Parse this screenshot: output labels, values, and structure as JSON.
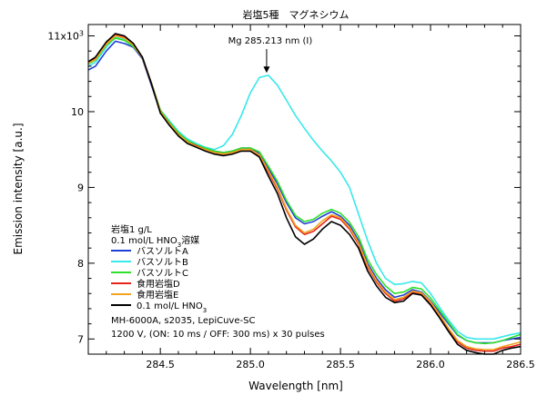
{
  "chart_data": {
    "type": "line",
    "title": "岩塩5種　マグネシウム",
    "xlabel": "Wavelength [nm]",
    "ylabel": "Emission intensity [a.u.]",
    "xlim": [
      284.1,
      286.5
    ],
    "ylim": [
      6.8,
      11.15
    ],
    "x_ticks": [
      284.5,
      285.0,
      285.5,
      286.0,
      286.5
    ],
    "x_tick_labels": [
      "284.5",
      "285.0",
      "285.5",
      "286.0",
      "286.5"
    ],
    "y_ticks": [
      7,
      8,
      9,
      10,
      11
    ],
    "y_tick_labels": [
      "7",
      "8",
      "9",
      "10"
    ],
    "y_top_label": {
      "base": "11x10",
      "exp": "3"
    },
    "annotation": {
      "text": "Mg 285.213 nm (I)",
      "x": 285.09,
      "y": 10.5
    },
    "legend": {
      "placement": "left",
      "title_line1": "岩塩1 g/L",
      "title_line2": {
        "before": "0.1 mol/L HNO",
        "sub": "3",
        "after": "溶媒"
      }
    },
    "notes": [
      "MH-6000A, s2035, LepiCuve-SC",
      "1200 V, (ON: 10 ms / OFF: 300 ms) x 30 pulses"
    ],
    "x": [
      284.1,
      284.14,
      284.2,
      284.25,
      284.3,
      284.35,
      284.4,
      284.45,
      284.5,
      284.55,
      284.6,
      284.65,
      284.7,
      284.75,
      284.8,
      284.85,
      284.9,
      284.95,
      285.0,
      285.05,
      285.1,
      285.15,
      285.2,
      285.25,
      285.3,
      285.35,
      285.4,
      285.45,
      285.5,
      285.55,
      285.6,
      285.65,
      285.7,
      285.75,
      285.8,
      285.85,
      285.9,
      285.95,
      286.0,
      286.05,
      286.1,
      286.15,
      286.2,
      286.25,
      286.3,
      286.35,
      286.4,
      286.45,
      286.5
    ],
    "series": [
      {
        "name": "バスソルトA",
        "color": "#1f3fd6",
        "values": [
          10.55,
          10.6,
          10.8,
          10.93,
          10.9,
          10.85,
          10.7,
          10.35,
          10.0,
          9.85,
          9.7,
          9.6,
          9.55,
          9.52,
          9.48,
          9.46,
          9.48,
          9.52,
          9.52,
          9.45,
          9.25,
          9.05,
          8.8,
          8.6,
          8.52,
          8.55,
          8.62,
          8.68,
          8.62,
          8.5,
          8.3,
          8.0,
          7.8,
          7.65,
          7.55,
          7.58,
          7.65,
          7.62,
          7.5,
          7.35,
          7.2,
          7.05,
          6.98,
          6.95,
          6.95,
          6.95,
          6.98,
          7.0,
          7.02
        ]
      },
      {
        "name": "バスソルトB",
        "color": "#38e8ea",
        "values": [
          10.6,
          10.65,
          10.85,
          10.98,
          10.96,
          10.88,
          10.72,
          10.38,
          10.02,
          9.88,
          9.74,
          9.64,
          9.58,
          9.53,
          9.5,
          9.55,
          9.7,
          9.95,
          10.25,
          10.45,
          10.48,
          10.35,
          10.15,
          9.95,
          9.78,
          9.62,
          9.48,
          9.35,
          9.2,
          9.0,
          8.65,
          8.3,
          8.0,
          7.8,
          7.72,
          7.73,
          7.76,
          7.74,
          7.6,
          7.42,
          7.25,
          7.1,
          7.02,
          7.0,
          7.0,
          7.0,
          7.03,
          7.06,
          7.08
        ]
      },
      {
        "name": "バスソルトC",
        "color": "#2ee02a",
        "values": [
          10.63,
          10.68,
          10.88,
          10.97,
          10.94,
          10.86,
          10.72,
          10.38,
          10.02,
          9.86,
          9.72,
          9.62,
          9.56,
          9.52,
          9.48,
          9.46,
          9.48,
          9.52,
          9.52,
          9.47,
          9.28,
          9.08,
          8.83,
          8.63,
          8.55,
          8.58,
          8.66,
          8.71,
          8.66,
          8.54,
          8.35,
          8.05,
          7.85,
          7.7,
          7.6,
          7.62,
          7.68,
          7.66,
          7.54,
          7.38,
          7.22,
          7.06,
          6.98,
          6.95,
          6.94,
          6.95,
          6.98,
          7.02,
          7.06
        ]
      },
      {
        "name": "食用岩塩D",
        "color": "#e8231c",
        "values": [
          10.65,
          10.7,
          10.9,
          11.02,
          10.99,
          10.9,
          10.72,
          10.38,
          10.0,
          9.84,
          9.7,
          9.6,
          9.55,
          9.5,
          9.46,
          9.44,
          9.46,
          9.5,
          9.5,
          9.42,
          9.2,
          8.98,
          8.7,
          8.48,
          8.38,
          8.42,
          8.52,
          8.62,
          8.58,
          8.45,
          8.25,
          7.95,
          7.75,
          7.6,
          7.5,
          7.53,
          7.62,
          7.6,
          7.48,
          7.3,
          7.12,
          6.96,
          6.88,
          6.85,
          6.84,
          6.84,
          6.88,
          6.9,
          6.93
        ]
      },
      {
        "name": "食用岩塩E",
        "color": "#f2a320",
        "values": [
          10.64,
          10.69,
          10.89,
          11.0,
          10.97,
          10.88,
          10.71,
          10.37,
          10.0,
          9.84,
          9.7,
          9.6,
          9.54,
          9.5,
          9.46,
          9.44,
          9.46,
          9.5,
          9.5,
          9.43,
          9.22,
          9.0,
          8.72,
          8.5,
          8.4,
          8.45,
          8.56,
          8.64,
          8.6,
          8.47,
          8.27,
          7.97,
          7.77,
          7.62,
          7.52,
          7.55,
          7.63,
          7.61,
          7.49,
          7.32,
          7.14,
          6.98,
          6.9,
          6.87,
          6.86,
          6.86,
          6.9,
          6.93,
          6.96
        ]
      },
      {
        "name": {
          "before": "0.1 mol/L HNO",
          "sub": "3"
        },
        "color": "#000000",
        "values": [
          10.66,
          10.72,
          10.92,
          11.03,
          11.0,
          10.9,
          10.72,
          10.37,
          9.98,
          9.82,
          9.68,
          9.58,
          9.53,
          9.48,
          9.44,
          9.42,
          9.44,
          9.48,
          9.48,
          9.4,
          9.15,
          8.92,
          8.6,
          8.35,
          8.25,
          8.32,
          8.45,
          8.55,
          8.5,
          8.38,
          8.2,
          7.9,
          7.7,
          7.55,
          7.48,
          7.5,
          7.6,
          7.58,
          7.45,
          7.28,
          7.1,
          6.93,
          6.85,
          6.82,
          6.8,
          6.8,
          6.85,
          6.88,
          6.9
        ]
      }
    ]
  }
}
